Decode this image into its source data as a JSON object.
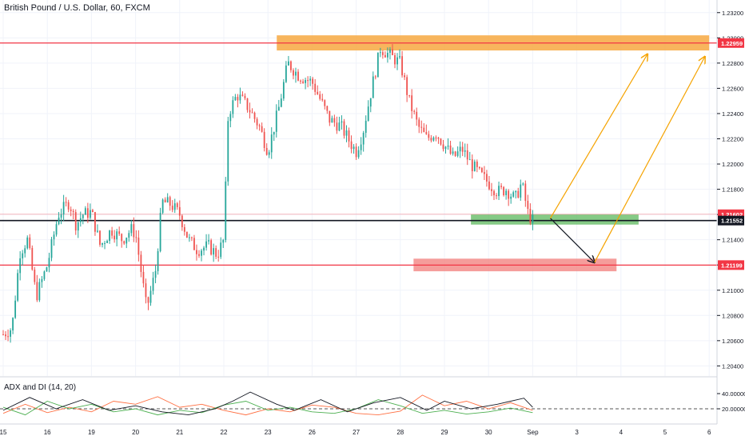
{
  "header": {
    "title": "British Pound / U.S. Dollar, 60, FXCM"
  },
  "indicator": {
    "title": "ADX and DI (14, 20)"
  },
  "price_axis": {
    "ticks": [
      "1.23200",
      "1.23000",
      "1.22800",
      "1.22600",
      "1.22400",
      "1.22200",
      "1.22000",
      "1.21800",
      "1.21600",
      "1.21400",
      "1.21200",
      "1.21000",
      "1.20800",
      "1.20600",
      "1.20400"
    ],
    "range": [
      1.2032,
      1.233
    ]
  },
  "indicator_axis": {
    "ticks": [
      "40.00000",
      "20.00000"
    ],
    "range": [
      0,
      60
    ]
  },
  "time_axis": {
    "labels": [
      {
        "label": "15",
        "pos": 0.0
      },
      {
        "label": "16",
        "pos": 1.0
      },
      {
        "label": "19",
        "pos": 2.0
      },
      {
        "label": "20",
        "pos": 3.0
      },
      {
        "label": "21",
        "pos": 4.0
      },
      {
        "label": "22",
        "pos": 5.0
      },
      {
        "label": "23",
        "pos": 6.0
      },
      {
        "label": "26",
        "pos": 7.0
      },
      {
        "label": "27",
        "pos": 8.0
      },
      {
        "label": "28",
        "pos": 9.0
      },
      {
        "label": "29",
        "pos": 10.0
      },
      {
        "label": "30",
        "pos": 11.0
      },
      {
        "label": "Sep",
        "pos": 12.0
      },
      {
        "label": "3",
        "pos": 13.0
      },
      {
        "label": "4",
        "pos": 14.0
      },
      {
        "label": "5",
        "pos": 15.0
      },
      {
        "label": "6",
        "pos": 16.0
      }
    ]
  },
  "price_labels": [
    {
      "value": 1.22959,
      "text": "1.22959",
      "color": "#f23645"
    },
    {
      "value": 1.21602,
      "text": "1.21602",
      "color": "#f23645"
    },
    {
      "value": 1.21552,
      "text": "1.21552",
      "color": "#131722"
    },
    {
      "value": 1.21199,
      "text": "1.21199",
      "color": "#f23645"
    }
  ],
  "colors": {
    "up": "#26a69a",
    "down": "#ef5350",
    "resistance": "#f23645",
    "supply_zone": "#f7a841",
    "demand_zone": "#5cb85c",
    "target_zone": "#f28482",
    "projection": "#f5a300",
    "adx": "#131722",
    "di_plus": "#4caf50",
    "di_minus": "#ff7043"
  },
  "chart_data": {
    "type": "candlestick",
    "title": "British Pound / U.S. Dollar, 60, FXCM",
    "horizontal_lines": [
      1.22959,
      1.21552,
      1.21199,
      1.21602
    ],
    "zones": [
      {
        "name": "supply",
        "from": [
          6.2,
          1.229
        ],
        "to": [
          16.0,
          1.2302
        ]
      },
      {
        "name": "demand",
        "from": [
          10.6,
          1.2152
        ],
        "to": [
          14.4,
          1.216
        ]
      },
      {
        "name": "target",
        "from": [
          9.3,
          1.2115
        ],
        "to": [
          13.9,
          1.2125
        ]
      }
    ],
    "projections": [
      {
        "from": [
          12.4,
          1.2157
        ],
        "to": [
          13.4,
          1.2122
        ]
      },
      {
        "from": [
          12.4,
          1.2157
        ],
        "to": [
          14.6,
          1.2287
        ]
      },
      {
        "from": [
          13.4,
          1.2122
        ],
        "to": [
          15.9,
          1.2285
        ]
      }
    ],
    "path": [
      [
        0.0,
        1.2065
      ],
      [
        0.2,
        1.207
      ],
      [
        0.38,
        1.213
      ],
      [
        0.55,
        1.214
      ],
      [
        0.75,
        1.2095
      ],
      [
        1.0,
        1.212
      ],
      [
        1.25,
        1.216
      ],
      [
        1.5,
        1.217
      ],
      [
        1.65,
        1.2152
      ],
      [
        1.8,
        1.216
      ],
      [
        2.0,
        1.2162
      ],
      [
        2.2,
        1.2135
      ],
      [
        2.45,
        1.2148
      ],
      [
        2.7,
        1.214
      ],
      [
        2.9,
        1.2148
      ],
      [
        3.0,
        1.2145
      ],
      [
        3.25,
        1.2085
      ],
      [
        3.45,
        1.2115
      ],
      [
        3.6,
        1.217
      ],
      [
        3.8,
        1.2168
      ],
      [
        4.0,
        1.216
      ],
      [
        4.2,
        1.214
      ],
      [
        4.4,
        1.2132
      ],
      [
        4.65,
        1.2135
      ],
      [
        4.85,
        1.2128
      ],
      [
        5.0,
        1.214
      ],
      [
        5.1,
        1.224
      ],
      [
        5.3,
        1.2255
      ],
      [
        5.55,
        1.2245
      ],
      [
        5.8,
        1.223
      ],
      [
        6.0,
        1.221
      ],
      [
        6.25,
        1.2245
      ],
      [
        6.45,
        1.228
      ],
      [
        6.7,
        1.227
      ],
      [
        7.0,
        1.2265
      ],
      [
        7.2,
        1.225
      ],
      [
        7.4,
        1.2235
      ],
      [
        7.65,
        1.223
      ],
      [
        7.9,
        1.2215
      ],
      [
        8.0,
        1.221
      ],
      [
        8.15,
        1.2225
      ],
      [
        8.35,
        1.226
      ],
      [
        8.55,
        1.2292
      ],
      [
        8.8,
        1.2285
      ],
      [
        9.0,
        1.228
      ],
      [
        9.2,
        1.225
      ],
      [
        9.4,
        1.223
      ],
      [
        9.6,
        1.222
      ],
      [
        9.8,
        1.2225
      ],
      [
        10.0,
        1.2215
      ],
      [
        10.2,
        1.2205
      ],
      [
        10.4,
        1.2212
      ],
      [
        10.6,
        1.22
      ],
      [
        10.8,
        1.2192
      ],
      [
        11.0,
        1.2185
      ],
      [
        11.2,
        1.2178
      ],
      [
        11.4,
        1.218
      ],
      [
        11.6,
        1.2172
      ],
      [
        11.75,
        1.2185
      ],
      [
        11.9,
        1.216
      ],
      [
        12.0,
        1.2155
      ]
    ],
    "adx": [
      [
        0.0,
        18
      ],
      [
        0.6,
        35
      ],
      [
        1.2,
        20
      ],
      [
        1.8,
        32
      ],
      [
        2.4,
        18
      ],
      [
        3.0,
        24
      ],
      [
        3.6,
        16
      ],
      [
        4.2,
        12
      ],
      [
        4.8,
        20
      ],
      [
        5.2,
        30
      ],
      [
        5.6,
        42
      ],
      [
        6.2,
        26
      ],
      [
        6.6,
        18
      ],
      [
        7.2,
        32
      ],
      [
        7.8,
        16
      ],
      [
        8.4,
        28
      ],
      [
        9.0,
        35
      ],
      [
        9.6,
        18
      ],
      [
        10.0,
        30
      ],
      [
        10.6,
        20
      ],
      [
        11.2,
        26
      ],
      [
        11.8,
        34
      ],
      [
        12.0,
        22
      ]
    ],
    "di_plus": [
      [
        0.0,
        22
      ],
      [
        0.5,
        12
      ],
      [
        1.0,
        30
      ],
      [
        1.5,
        20
      ],
      [
        2.0,
        26
      ],
      [
        2.5,
        16
      ],
      [
        3.0,
        20
      ],
      [
        3.5,
        12
      ],
      [
        4.0,
        18
      ],
      [
        4.5,
        15
      ],
      [
        5.0,
        25
      ],
      [
        5.5,
        30
      ],
      [
        6.0,
        18
      ],
      [
        6.5,
        22
      ],
      [
        7.0,
        16
      ],
      [
        7.5,
        14
      ],
      [
        8.0,
        20
      ],
      [
        8.5,
        32
      ],
      [
        9.0,
        24
      ],
      [
        9.5,
        14
      ],
      [
        10.0,
        18
      ],
      [
        10.5,
        13
      ],
      [
        11.0,
        16
      ],
      [
        11.5,
        21
      ],
      [
        12.0,
        15
      ]
    ],
    "di_minus": [
      [
        0.0,
        14
      ],
      [
        0.5,
        26
      ],
      [
        1.0,
        15
      ],
      [
        1.5,
        22
      ],
      [
        2.0,
        16
      ],
      [
        2.5,
        30
      ],
      [
        3.0,
        26
      ],
      [
        3.5,
        36
      ],
      [
        4.0,
        22
      ],
      [
        4.5,
        26
      ],
      [
        5.0,
        18
      ],
      [
        5.5,
        12
      ],
      [
        6.0,
        20
      ],
      [
        6.5,
        16
      ],
      [
        7.0,
        25
      ],
      [
        7.5,
        22
      ],
      [
        8.0,
        14
      ],
      [
        8.5,
        12
      ],
      [
        9.0,
        17
      ],
      [
        9.5,
        38
      ],
      [
        10.0,
        24
      ],
      [
        10.5,
        30
      ],
      [
        11.0,
        20
      ],
      [
        11.5,
        28
      ],
      [
        12.0,
        18
      ]
    ]
  }
}
